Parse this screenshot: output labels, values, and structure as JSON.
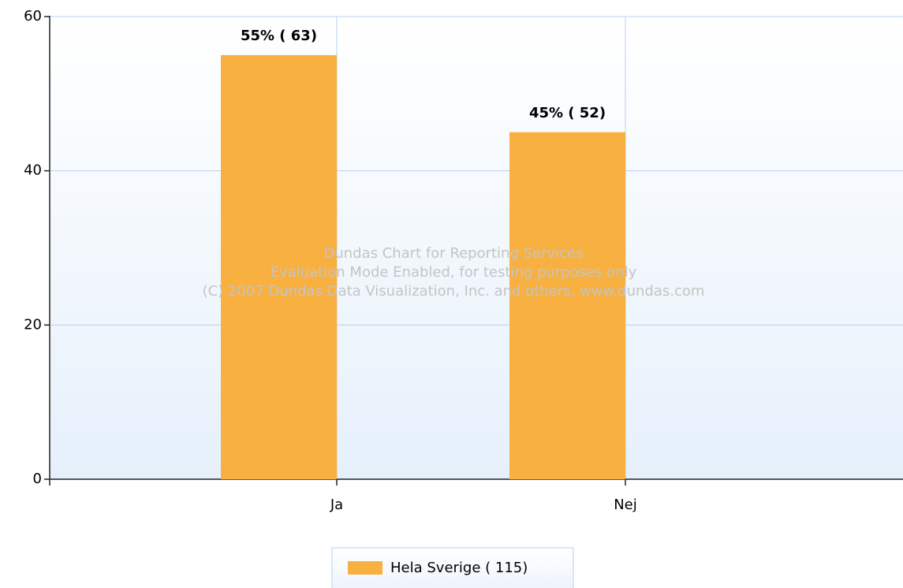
{
  "chart_data": {
    "type": "bar",
    "categories": [
      "Ja",
      "Nej"
    ],
    "series": [
      {
        "name": "Hela Sverige ( 115)",
        "color": "#f8b040",
        "values": [
          55,
          45
        ],
        "value_labels": [
          "55% ( 63)",
          "45% ( 52)"
        ]
      }
    ],
    "ylim": [
      0,
      60
    ],
    "yticks": [
      0,
      20,
      40,
      60
    ],
    "grid": true,
    "legend": "bottom",
    "annotations": [
      "Dundas Chart for Reporting Services",
      "Evaluation Mode Enabled, for testing purposes only",
      "(C) 2007 Dundas Data Visualization, Inc. and others, www.dundas.com"
    ]
  }
}
